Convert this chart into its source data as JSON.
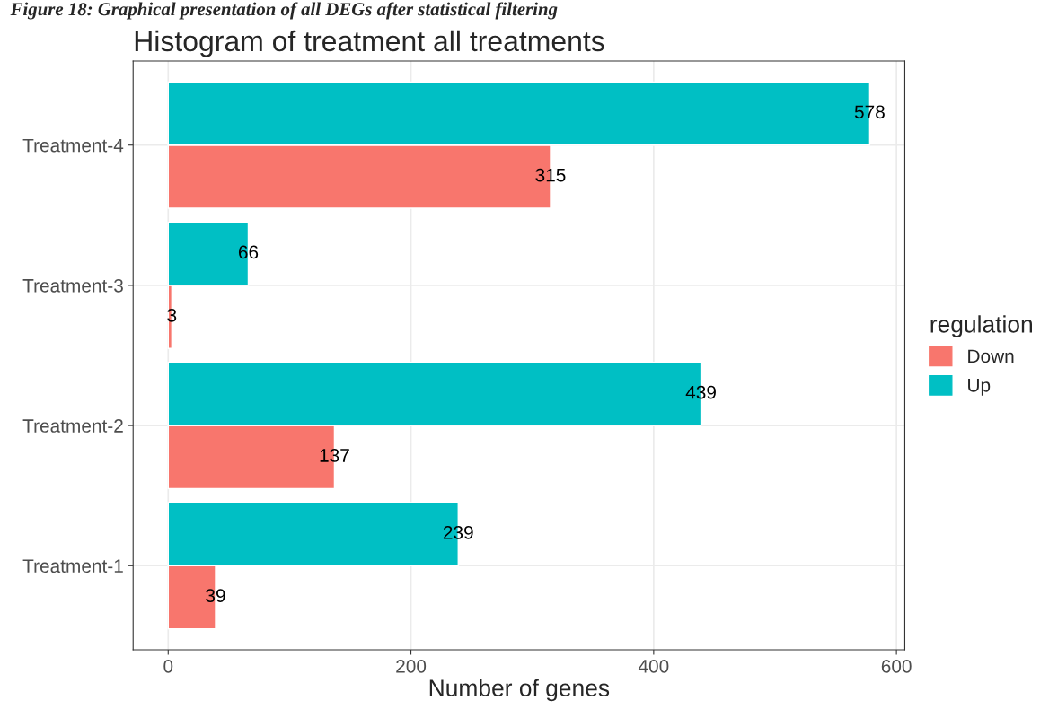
{
  "chart_data": {
    "type": "bar",
    "orientation": "horizontal",
    "title": "Histogram of treatment all treatments",
    "xlabel": "Number of genes",
    "legend_title": "regulation",
    "annotations": [
      "Figure 18: Graphical presentation of all DEGs after statistical filtering"
    ],
    "categories": [
      "Treatment-4",
      "Treatment-3",
      "Treatment-2",
      "Treatment-1"
    ],
    "series": [
      {
        "name": "Down",
        "color": "#f8766d",
        "values": [
          315,
          3,
          137,
          39
        ]
      },
      {
        "name": "Up",
        "color": "#00bfc4",
        "values": [
          578,
          66,
          439,
          239
        ]
      }
    ],
    "xlim": [
      -28.9,
      606.9
    ],
    "xticks": [
      0,
      200,
      400,
      600
    ],
    "data_labels": true,
    "grid": true,
    "legend": "right"
  }
}
